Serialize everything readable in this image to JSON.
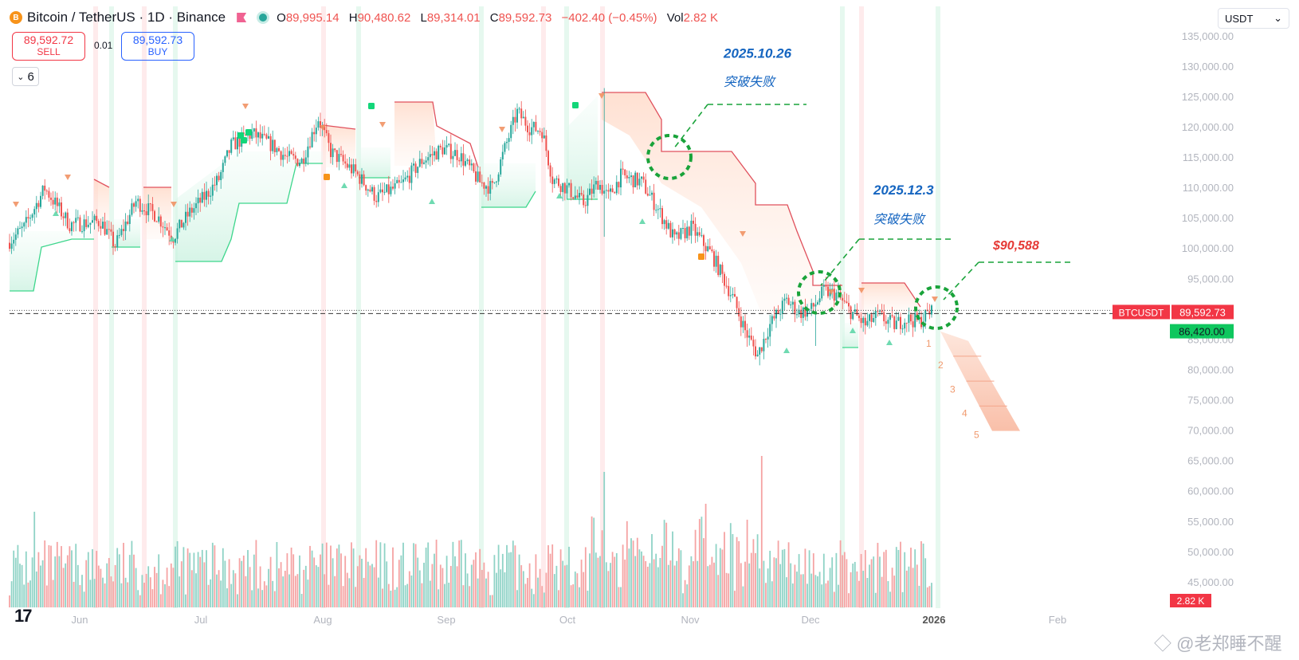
{
  "header": {
    "symbol": "Bitcoin / TetherUS · 1D · Binance",
    "coin_icon_text": "B",
    "o_label": "O",
    "o_value": "89,995.14",
    "h_label": "H",
    "h_value": "90,480.62",
    "l_label": "L",
    "l_value": "89,314.01",
    "c_label": "C",
    "c_value": "89,592.73",
    "change": "−402.40 (−0.45%)",
    "vol_label": "Vol",
    "vol_value": "2.82 K"
  },
  "trade": {
    "sell_price": "89,592.72",
    "sell_label": "SELL",
    "qty": "0.01",
    "buy_price": "89,592.73",
    "buy_label": "BUY"
  },
  "indicators_count": "6",
  "currency": {
    "selected": "USDT",
    "chevron": "⌄"
  },
  "tv_logo": "17",
  "watermark": "◇ @老郑睡不醒",
  "colors": {
    "up": "#26a69a",
    "down": "#ef5350",
    "annot_blue": "#1565c0",
    "annot_red": "#e53935",
    "guide": "#19a33a"
  },
  "chart_data": {
    "type": "candlestick",
    "x_labels": [
      "Jun",
      "Jul",
      "Aug",
      "Sep",
      "Oct",
      "Nov",
      "Dec",
      "2026",
      "Feb"
    ],
    "y_ticks": [
      "135,000.00",
      "130,000.00",
      "125,000.00",
      "120,000.00",
      "115,000.00",
      "110,000.00",
      "105,000.00",
      "100,000.00",
      "95,000.00",
      "90,000.00",
      "85,000.00",
      "80,000.00",
      "75,000.00",
      "70,000.00",
      "65,000.00",
      "60,000.00",
      "55,000.00",
      "50,000.00",
      "45,000.00"
    ],
    "ylim": [
      40000,
      137000
    ],
    "price_label": {
      "name": "BTCUSDT",
      "value": "89,592.73",
      "level": 89592.73
    },
    "secondary_label": {
      "value": "86,420.00",
      "level": 86420
    },
    "volume_label": "2.82 K",
    "annotations": [
      {
        "date": "2025.10.26",
        "text": "突破失败",
        "level_a": 131500,
        "level_b": 127500
      },
      {
        "date": "2025.12.3",
        "text": "突破失败",
        "level_a": 109500,
        "level_b": 105500
      },
      {
        "text": "$90,588",
        "level": 100300
      }
    ],
    "projection": {
      "start": 86400,
      "end": 70000,
      "labels": [
        "1",
        "2",
        "3",
        "4",
        "5"
      ],
      "levels": [
        84500,
        81000,
        77000,
        73000,
        69500
      ]
    }
  }
}
